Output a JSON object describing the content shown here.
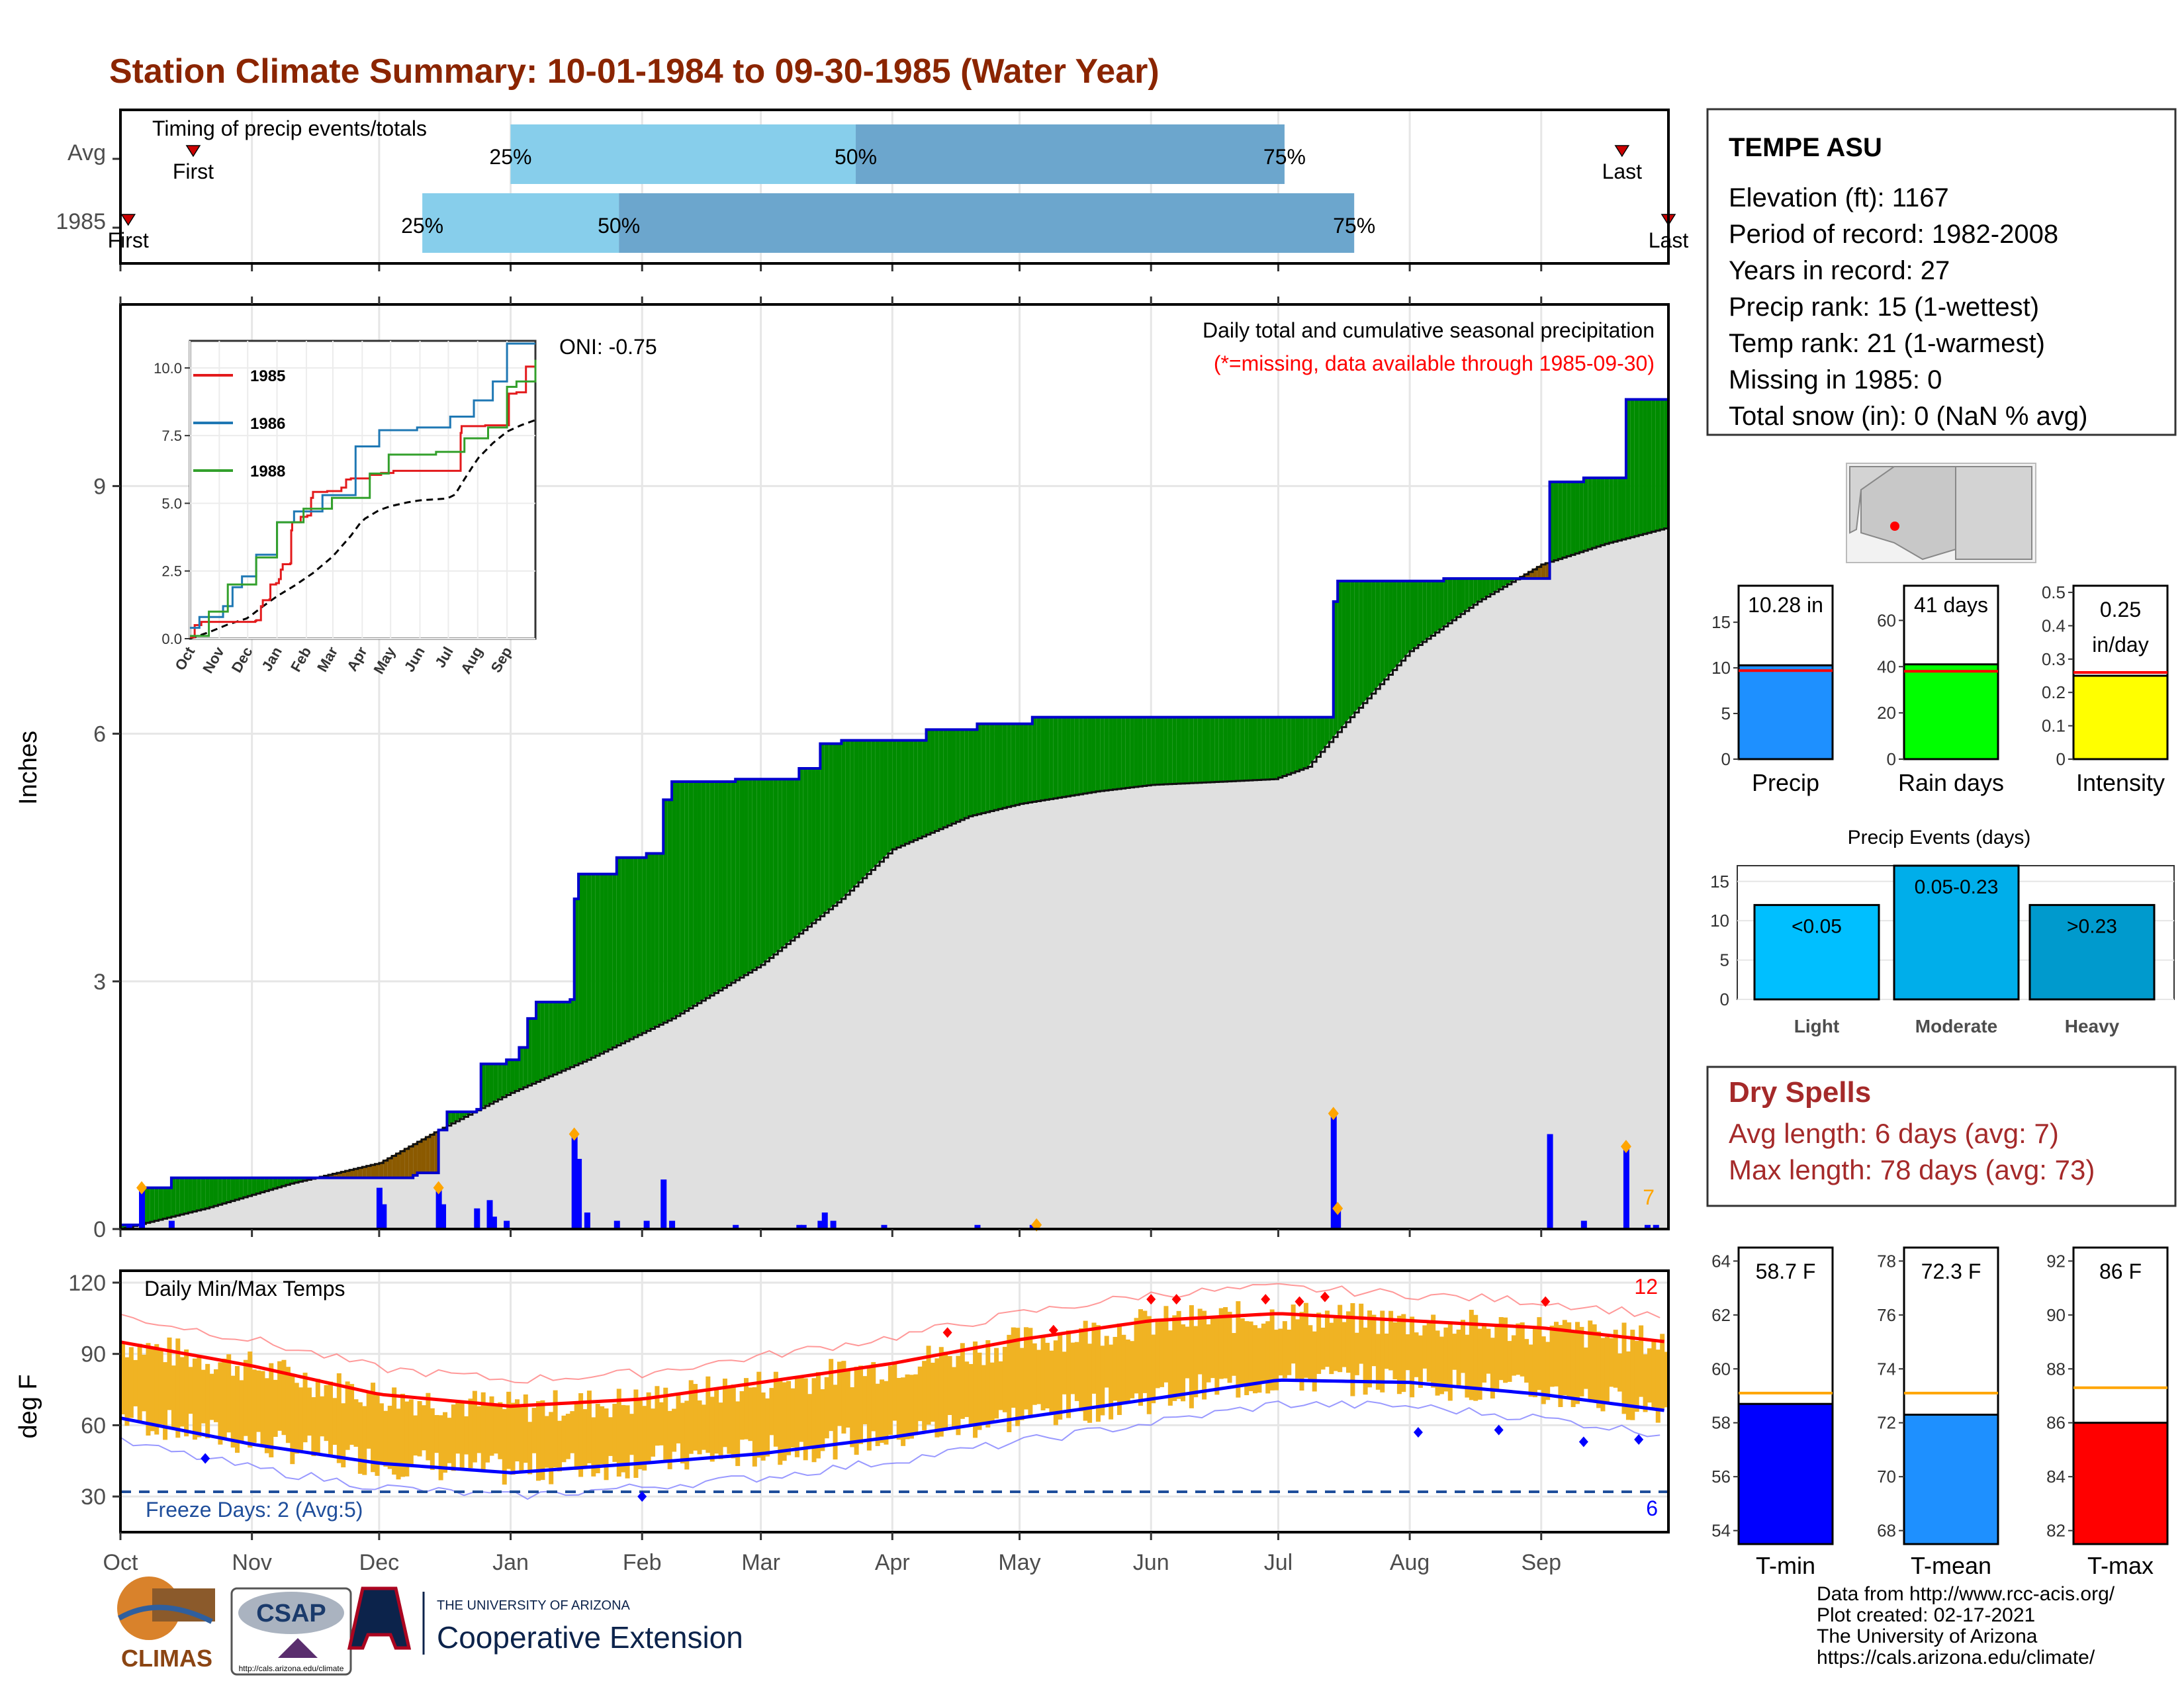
{
  "title": "Station Climate Summary: 10-01-1984 to 09-30-1985 (Water Year)",
  "timing": {
    "label": "Timing of precip events/totals",
    "rows": [
      {
        "name": "Avg",
        "q25": 0.25,
        "q50": 0.5,
        "q75": 0.75,
        "first_label": "First",
        "last_label": "Last",
        "first_frac": 0.047,
        "last_frac": 0.97,
        "p25_frac": 0.252,
        "p50_frac": 0.475,
        "p75_frac": 0.752
      },
      {
        "name": "1985",
        "first_label": "First",
        "last_label": "Last",
        "first_frac": 0.005,
        "last_frac": 1.0,
        "p25_frac": 0.195,
        "p50_frac": 0.322,
        "p75_frac": 0.797
      }
    ],
    "pct_labels": [
      "25%",
      "50%",
      "75%"
    ]
  },
  "months": [
    "Oct",
    "Nov",
    "Dec",
    "Jan",
    "Feb",
    "Mar",
    "Apr",
    "May",
    "Jun",
    "Jul",
    "Aug",
    "Sep"
  ],
  "month_start_days": [
    0,
    31,
    61,
    92,
    123,
    151,
    182,
    212,
    243,
    273,
    304,
    335
  ],
  "precip_panel": {
    "ylabel": "Inches",
    "yticks": [
      0,
      3,
      6,
      9
    ],
    "ylim": [
      0,
      11.2
    ],
    "oni_label": "ONI: -0.75",
    "caption": "Daily total and cumulative seasonal precipitation",
    "missing_note": "(*=missing, data available through 1985-09-30)",
    "corner_count": "7"
  },
  "inset": {
    "legend": [
      "1985",
      "1986",
      "1988"
    ],
    "legend_colors": [
      "#e31a1c",
      "#1f78b4",
      "#33a02c"
    ],
    "yticks": [
      "0.0",
      "2.5",
      "5.0",
      "7.5",
      "10.0"
    ],
    "months": [
      "Oct",
      "Nov",
      "Dec",
      "Jan",
      "Feb",
      "Mar",
      "Apr",
      "May",
      "Jun",
      "Jul",
      "Aug",
      "Sep"
    ]
  },
  "temp_panel": {
    "ylabel": "deg F",
    "label": "Daily Min/Max Temps",
    "yticks": [
      30,
      60,
      90,
      120
    ],
    "ylim": [
      15,
      125
    ],
    "freeze_label": "Freeze Days: 2 (Avg:5)",
    "hot_count": "12",
    "cold_count": "6"
  },
  "station": {
    "name": "TEMPE ASU",
    "lines": [
      "Elevation (ft): 1167",
      "Period of record: 1982-2008",
      "Years in record: 27",
      "Precip rank: 15 (1-wettest)",
      "Temp rank: 21 (1-warmest)",
      "Missing in 1985: 0",
      "Total snow (in): 0 (NaN % avg)"
    ]
  },
  "summary_bars": [
    {
      "label": "Precip",
      "value_label": "10.28 in",
      "value": 10.28,
      "avg": 9.7,
      "ymax": 19,
      "ticks": [
        0,
        5,
        10,
        15
      ],
      "color": "#1E90FF"
    },
    {
      "label": "Rain days",
      "value_label": "41 days",
      "value": 41,
      "avg": 38,
      "ymax": 75,
      "ticks": [
        0,
        20,
        40,
        60
      ],
      "color": "#00FF00"
    },
    {
      "label": "Intensity",
      "value_label": "0.25 in/day",
      "value": 0.25,
      "avg": 0.26,
      "ymax": 0.52,
      "ticks": [
        0.0,
        0.1,
        0.2,
        0.3,
        0.4,
        0.5
      ],
      "color": "#FFFF00"
    }
  ],
  "events": {
    "title": "Precip Events (days)",
    "categories": [
      "Light",
      "Moderate",
      "Heavy"
    ],
    "values": [
      12,
      17,
      12
    ],
    "bar_labels": [
      "<0.05",
      "0.05-0.23",
      ">0.23"
    ],
    "colors": [
      "#00BFFF",
      "#00AEEA",
      "#009ACD"
    ],
    "ticks": [
      0,
      5,
      10,
      15
    ]
  },
  "dry_spells": {
    "title": "Dry Spells",
    "avg_line": "Avg length: 6 days (avg: 7)",
    "max_line": "Max length: 78 days (avg: 73)"
  },
  "temp_bars": [
    {
      "label": "T-min",
      "value_label": "58.7 F",
      "value": 58.7,
      "avg": 59.1,
      "ymin": 53.5,
      "ymax": 64.5,
      "ticks": [
        54,
        56,
        58,
        60,
        62,
        64
      ],
      "color": "#0000FF"
    },
    {
      "label": "T-mean",
      "value_label": "72.3 F",
      "value": 72.3,
      "avg": 73.1,
      "ymin": 67.5,
      "ymax": 78.5,
      "ticks": [
        68,
        70,
        72,
        74,
        76,
        78
      ],
      "color": "#1E90FF"
    },
    {
      "label": "T-max",
      "value_label": "86 F",
      "value": 86.0,
      "avg": 87.3,
      "ymin": 81.5,
      "ymax": 92.5,
      "ticks": [
        82,
        84,
        86,
        88,
        90,
        92
      ],
      "color": "#FF0000"
    }
  ],
  "logos": {
    "climas": "CLIMAS",
    "csap": "CSAP",
    "csap_url": "http://cals.arizona.edu/climate",
    "ua_top": "THE UNIVERSITY OF ARIZONA",
    "ua_bottom": "Cooperative Extension"
  },
  "credits": [
    "Data from http://www.rcc-acis.org/",
    "Plot created: 02-17-2021",
    "The University of Arizona",
    "https://cals.arizona.edu/climate/"
  ],
  "chart_data": [
    {
      "type": "area",
      "title": "Daily total and cumulative seasonal precipitation",
      "ylabel": "Inches",
      "ylim": [
        0,
        11.2
      ],
      "cumulative_1985_steps": [
        [
          0,
          0.05
        ],
        [
          5,
          0.5
        ],
        [
          12,
          0.62
        ],
        [
          69,
          0.65
        ],
        [
          70,
          0.68
        ],
        [
          75,
          1.2
        ],
        [
          77,
          1.42
        ],
        [
          84,
          1.45
        ],
        [
          85,
          2.0
        ],
        [
          91,
          2.05
        ],
        [
          94,
          2.2
        ],
        [
          96,
          2.55
        ],
        [
          98,
          2.75
        ],
        [
          106,
          2.78
        ],
        [
          107,
          4.0
        ],
        [
          108,
          4.3
        ],
        [
          117,
          4.5
        ],
        [
          124,
          4.55
        ],
        [
          128,
          5.2
        ],
        [
          130,
          5.42
        ],
        [
          145,
          5.45
        ],
        [
          160,
          5.58
        ],
        [
          165,
          5.88
        ],
        [
          170,
          5.92
        ],
        [
          190,
          6.05
        ],
        [
          202,
          6.12
        ],
        [
          215,
          6.2
        ],
        [
          285,
          6.2
        ],
        [
          286,
          7.6
        ],
        [
          287,
          7.85
        ],
        [
          312,
          7.88
        ],
        [
          337,
          9.05
        ],
        [
          345,
          9.1
        ],
        [
          355,
          10.05
        ],
        [
          365,
          10.28
        ]
      ],
      "cumulative_avg": [
        [
          0,
          0
        ],
        [
          20,
          0.25
        ],
        [
          40,
          0.55
        ],
        [
          61,
          0.8
        ],
        [
          75,
          1.2
        ],
        [
          92,
          1.65
        ],
        [
          110,
          2.05
        ],
        [
          130,
          2.55
        ],
        [
          151,
          3.2
        ],
        [
          170,
          4.0
        ],
        [
          182,
          4.6
        ],
        [
          200,
          5.0
        ],
        [
          212,
          5.15
        ],
        [
          230,
          5.3
        ],
        [
          243,
          5.38
        ],
        [
          260,
          5.42
        ],
        [
          272,
          5.45
        ],
        [
          280,
          5.6
        ],
        [
          290,
          6.2
        ],
        [
          304,
          7.0
        ],
        [
          320,
          7.6
        ],
        [
          335,
          8.05
        ],
        [
          350,
          8.3
        ],
        [
          365,
          8.5
        ]
      ],
      "daily_bars": [
        [
          2,
          0.05
        ],
        [
          5,
          0.5
        ],
        [
          12,
          0.1
        ],
        [
          61,
          0.5
        ],
        [
          62,
          0.3
        ],
        [
          75,
          0.5
        ],
        [
          76,
          0.3
        ],
        [
          84,
          0.25
        ],
        [
          87,
          0.35
        ],
        [
          88,
          0.15
        ],
        [
          91,
          0.1
        ],
        [
          107,
          1.15
        ],
        [
          108,
          0.85
        ],
        [
          110,
          0.2
        ],
        [
          117,
          0.1
        ],
        [
          124,
          0.1
        ],
        [
          128,
          0.6
        ],
        [
          130,
          0.1
        ],
        [
          145,
          0.05
        ],
        [
          160,
          0.05
        ],
        [
          161,
          0.05
        ],
        [
          165,
          0.1
        ],
        [
          166,
          0.2
        ],
        [
          168,
          0.1
        ],
        [
          180,
          0.05
        ],
        [
          202,
          0.05
        ],
        [
          215,
          0.05
        ],
        [
          286,
          1.4
        ],
        [
          287,
          0.25
        ],
        [
          337,
          1.15
        ],
        [
          345,
          0.1
        ],
        [
          355,
          1.0
        ],
        [
          360,
          0.05
        ],
        [
          362,
          0.05
        ]
      ]
    },
    {
      "type": "line",
      "title": "Daily Min/Max Temps",
      "ylabel": "deg F",
      "ylim": [
        15,
        125
      ],
      "avg_max": [
        [
          0,
          95
        ],
        [
          31,
          85
        ],
        [
          61,
          73
        ],
        [
          92,
          68
        ],
        [
          123,
          71
        ],
        [
          151,
          78
        ],
        [
          182,
          86
        ],
        [
          212,
          96
        ],
        [
          243,
          104
        ],
        [
          273,
          107
        ],
        [
          304,
          104
        ],
        [
          335,
          101
        ],
        [
          365,
          95
        ]
      ],
      "avg_min": [
        [
          0,
          63
        ],
        [
          31,
          52
        ],
        [
          61,
          44
        ],
        [
          92,
          40
        ],
        [
          123,
          44
        ],
        [
          151,
          48
        ],
        [
          182,
          55
        ],
        [
          212,
          63
        ],
        [
          243,
          71
        ],
        [
          273,
          79
        ],
        [
          304,
          78
        ],
        [
          335,
          73
        ],
        [
          365,
          66
        ]
      ],
      "freeze_line": 32
    }
  ]
}
